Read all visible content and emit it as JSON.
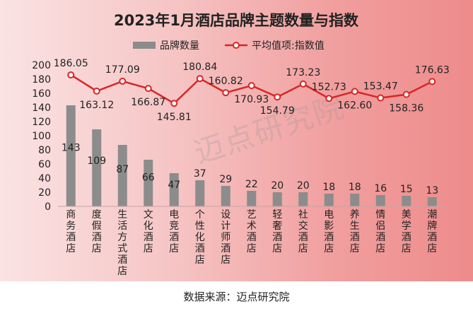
{
  "chart_data": {
    "type": "bar+line",
    "title": "2023年1月酒店品牌主题数量与指数",
    "categories": [
      "商务酒店",
      "度假酒店",
      "生活方式酒店",
      "文化酒店",
      "电竞酒店",
      "个性化酒店",
      "设计师酒店",
      "艺术酒店",
      "轻奢酒店",
      "社交酒店",
      "电影酒店",
      "养生酒店",
      "情侣酒店",
      "美学酒店",
      "潮牌酒店"
    ],
    "series": [
      {
        "name": "品牌数量",
        "type": "bar",
        "values": [
          143,
          109,
          87,
          66,
          47,
          37,
          29,
          22,
          20,
          20,
          18,
          18,
          16,
          15,
          13
        ]
      },
      {
        "name": "平均值项:指数值",
        "type": "line",
        "values": [
          186.05,
          163.12,
          177.09,
          166.87,
          145.81,
          180.84,
          160.82,
          170.93,
          154.79,
          173.23,
          152.73,
          162.6,
          153.47,
          158.36,
          176.63
        ]
      }
    ],
    "value_labels_bar": [
      "143",
      "109",
      "87",
      "66",
      "47",
      "37",
      "29",
      "22",
      "20",
      "20",
      "18",
      "18",
      "16",
      "15",
      "13"
    ],
    "value_labels_line": [
      "186.05",
      "163.12",
      "177.09",
      "166.87",
      "145.81",
      "180.84",
      "160.82",
      "170.93",
      "154.79",
      "173.23",
      "152.73",
      "162.60",
      "153.47",
      "158.36",
      "176.63"
    ],
    "y_ticks": [
      "0",
      "20",
      "40",
      "60",
      "80",
      "100",
      "120",
      "140",
      "160",
      "180",
      "200"
    ],
    "ylim": [
      0,
      200
    ],
    "legend_position": "top",
    "colors": {
      "bar": "#8c8c8c",
      "line": "#d92626",
      "marker_fill": "#ffffff",
      "axis": "#c9a3a3"
    }
  },
  "watermark": "迈点研究院",
  "source": "数据来源：迈点研究院"
}
